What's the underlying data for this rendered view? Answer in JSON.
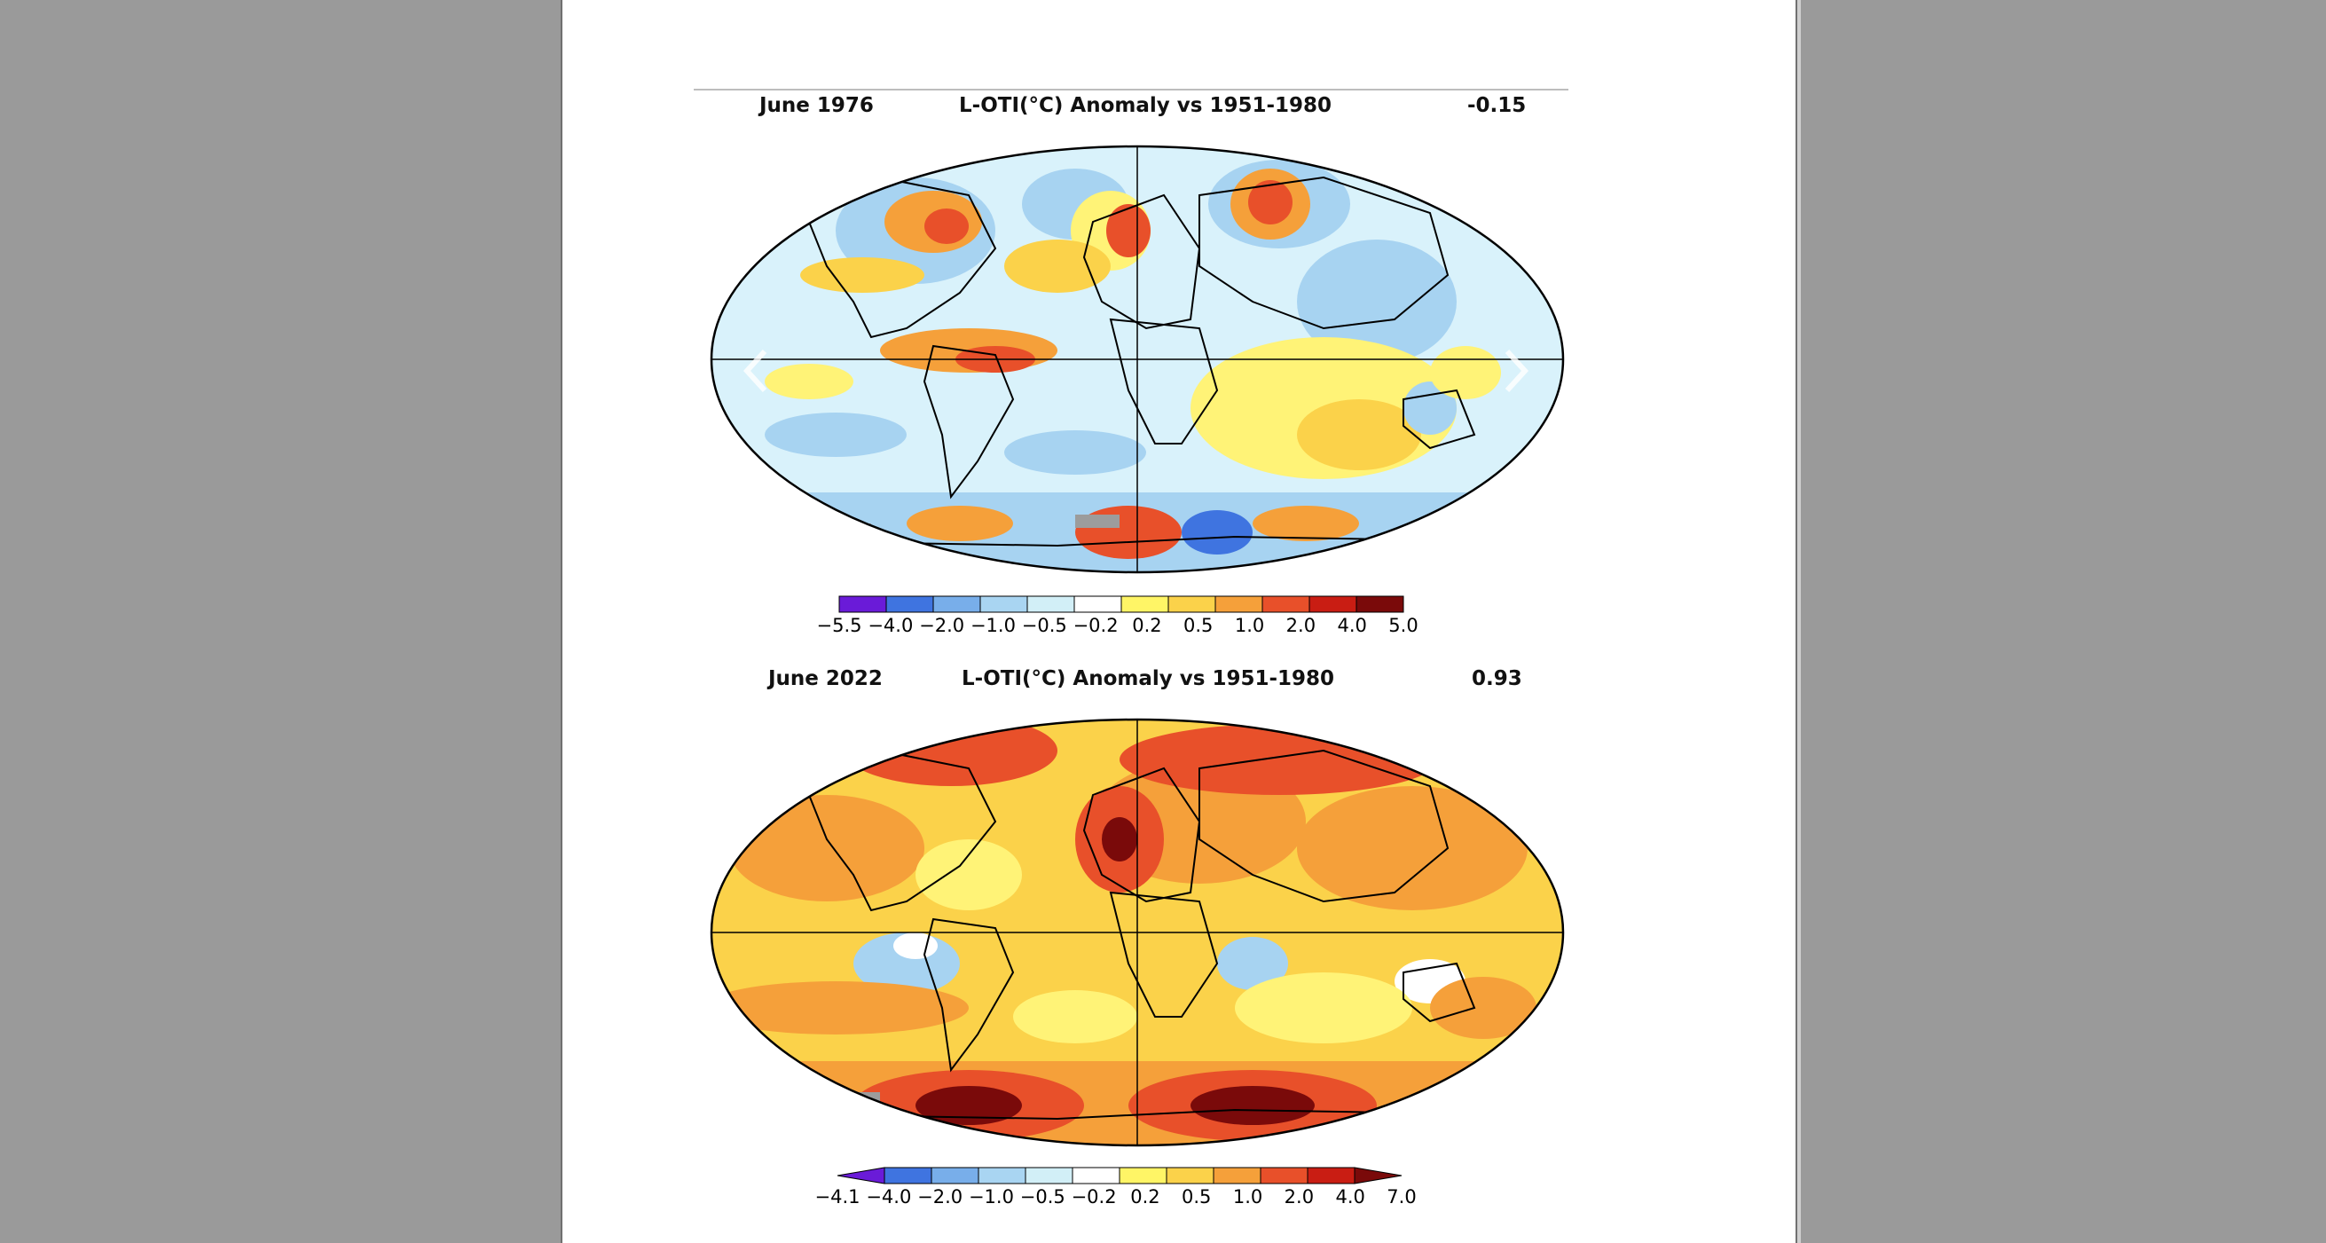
{
  "panels": [
    {
      "date": "June 1976",
      "title": "L-OTI(°C) Anomaly vs 1951-1980",
      "global_mean": "-0.15",
      "colorbar_ticks": [
        "−5.5",
        "−4.0",
        "−2.0",
        "−1.0",
        "−0.5",
        "−0.2",
        "0.2",
        "0.5",
        "1.0",
        "2.0",
        "4.0",
        "5.0"
      ]
    },
    {
      "date": "June 2022",
      "title": "L-OTI(°C) Anomaly vs 1951-1980",
      "global_mean": "0.93",
      "colorbar_ticks": [
        "−4.1",
        "−4.0",
        "−2.0",
        "−1.0",
        "−0.5",
        "−0.2",
        "0.2",
        "0.5",
        "1.0",
        "2.0",
        "4.0",
        "7.0"
      ]
    }
  ],
  "colorbar_colors": [
    "#6a1bd8",
    "#3f74e0",
    "#78aeea",
    "#a9d5f2",
    "#d2eff7",
    "#ffffff",
    "#fff566",
    "#fbd24a",
    "#f5a03a",
    "#e8502a",
    "#c91d13",
    "#7a0a0a"
  ],
  "land_regions_icons": [
    "prev-arrow-icon",
    "next-arrow-icon"
  ]
}
